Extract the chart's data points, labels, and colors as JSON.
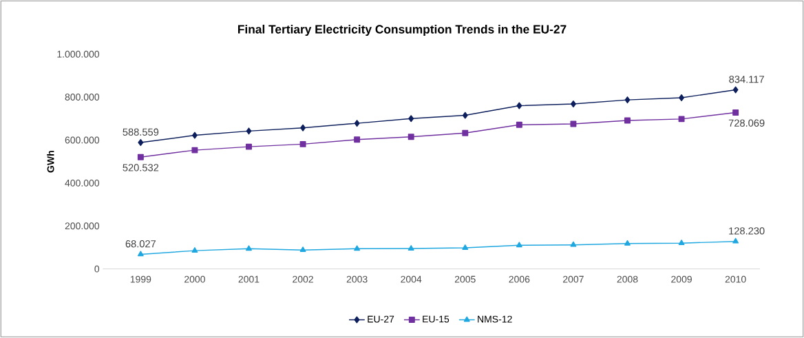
{
  "chart_data": {
    "type": "line",
    "title": "Final Tertiary Electricity Consumption Trends in the EU-27",
    "ylabel": "GWh",
    "categories": [
      "1999",
      "2000",
      "2001",
      "2002",
      "2003",
      "2004",
      "2005",
      "2006",
      "2007",
      "2008",
      "2009",
      "2010"
    ],
    "series": [
      {
        "name": "EU-27",
        "color": "#0d1f5c",
        "marker": "diamond",
        "values": [
          588559,
          622000,
          642000,
          657000,
          678000,
          700000,
          715000,
          760000,
          768000,
          787000,
          797000,
          834117
        ],
        "value_labels": [
          "588.559",
          null,
          null,
          null,
          null,
          null,
          null,
          null,
          null,
          null,
          null,
          "834.117"
        ]
      },
      {
        "name": "EU-15",
        "color": "#7030a0",
        "marker": "square",
        "values": [
          520532,
          553000,
          569000,
          581000,
          602000,
          615000,
          633000,
          671000,
          675000,
          691000,
          698000,
          728069
        ],
        "value_labels": [
          "520.532",
          null,
          null,
          null,
          null,
          null,
          null,
          null,
          null,
          null,
          null,
          "728.069"
        ]
      },
      {
        "name": "NMS-12",
        "color": "#1fa7e0",
        "marker": "triangle",
        "values": [
          68027,
          85000,
          94000,
          88000,
          94000,
          95000,
          98000,
          110000,
          112000,
          118000,
          120000,
          128230
        ],
        "value_labels": [
          "68.027",
          null,
          null,
          null,
          null,
          null,
          null,
          null,
          null,
          null,
          null,
          "128.230"
        ]
      }
    ],
    "ylim": [
      0,
      1000000
    ],
    "yticks": [
      {
        "value": 0,
        "label": "0"
      },
      {
        "value": 200000,
        "label": "200.000"
      },
      {
        "value": 400000,
        "label": "400.000"
      },
      {
        "value": 600000,
        "label": "600.000"
      },
      {
        "value": 800000,
        "label": "800.000"
      },
      {
        "value": 1000000,
        "label": "1.000.000"
      }
    ],
    "grid": false,
    "legend": "bottom",
    "line_style": "solid"
  }
}
